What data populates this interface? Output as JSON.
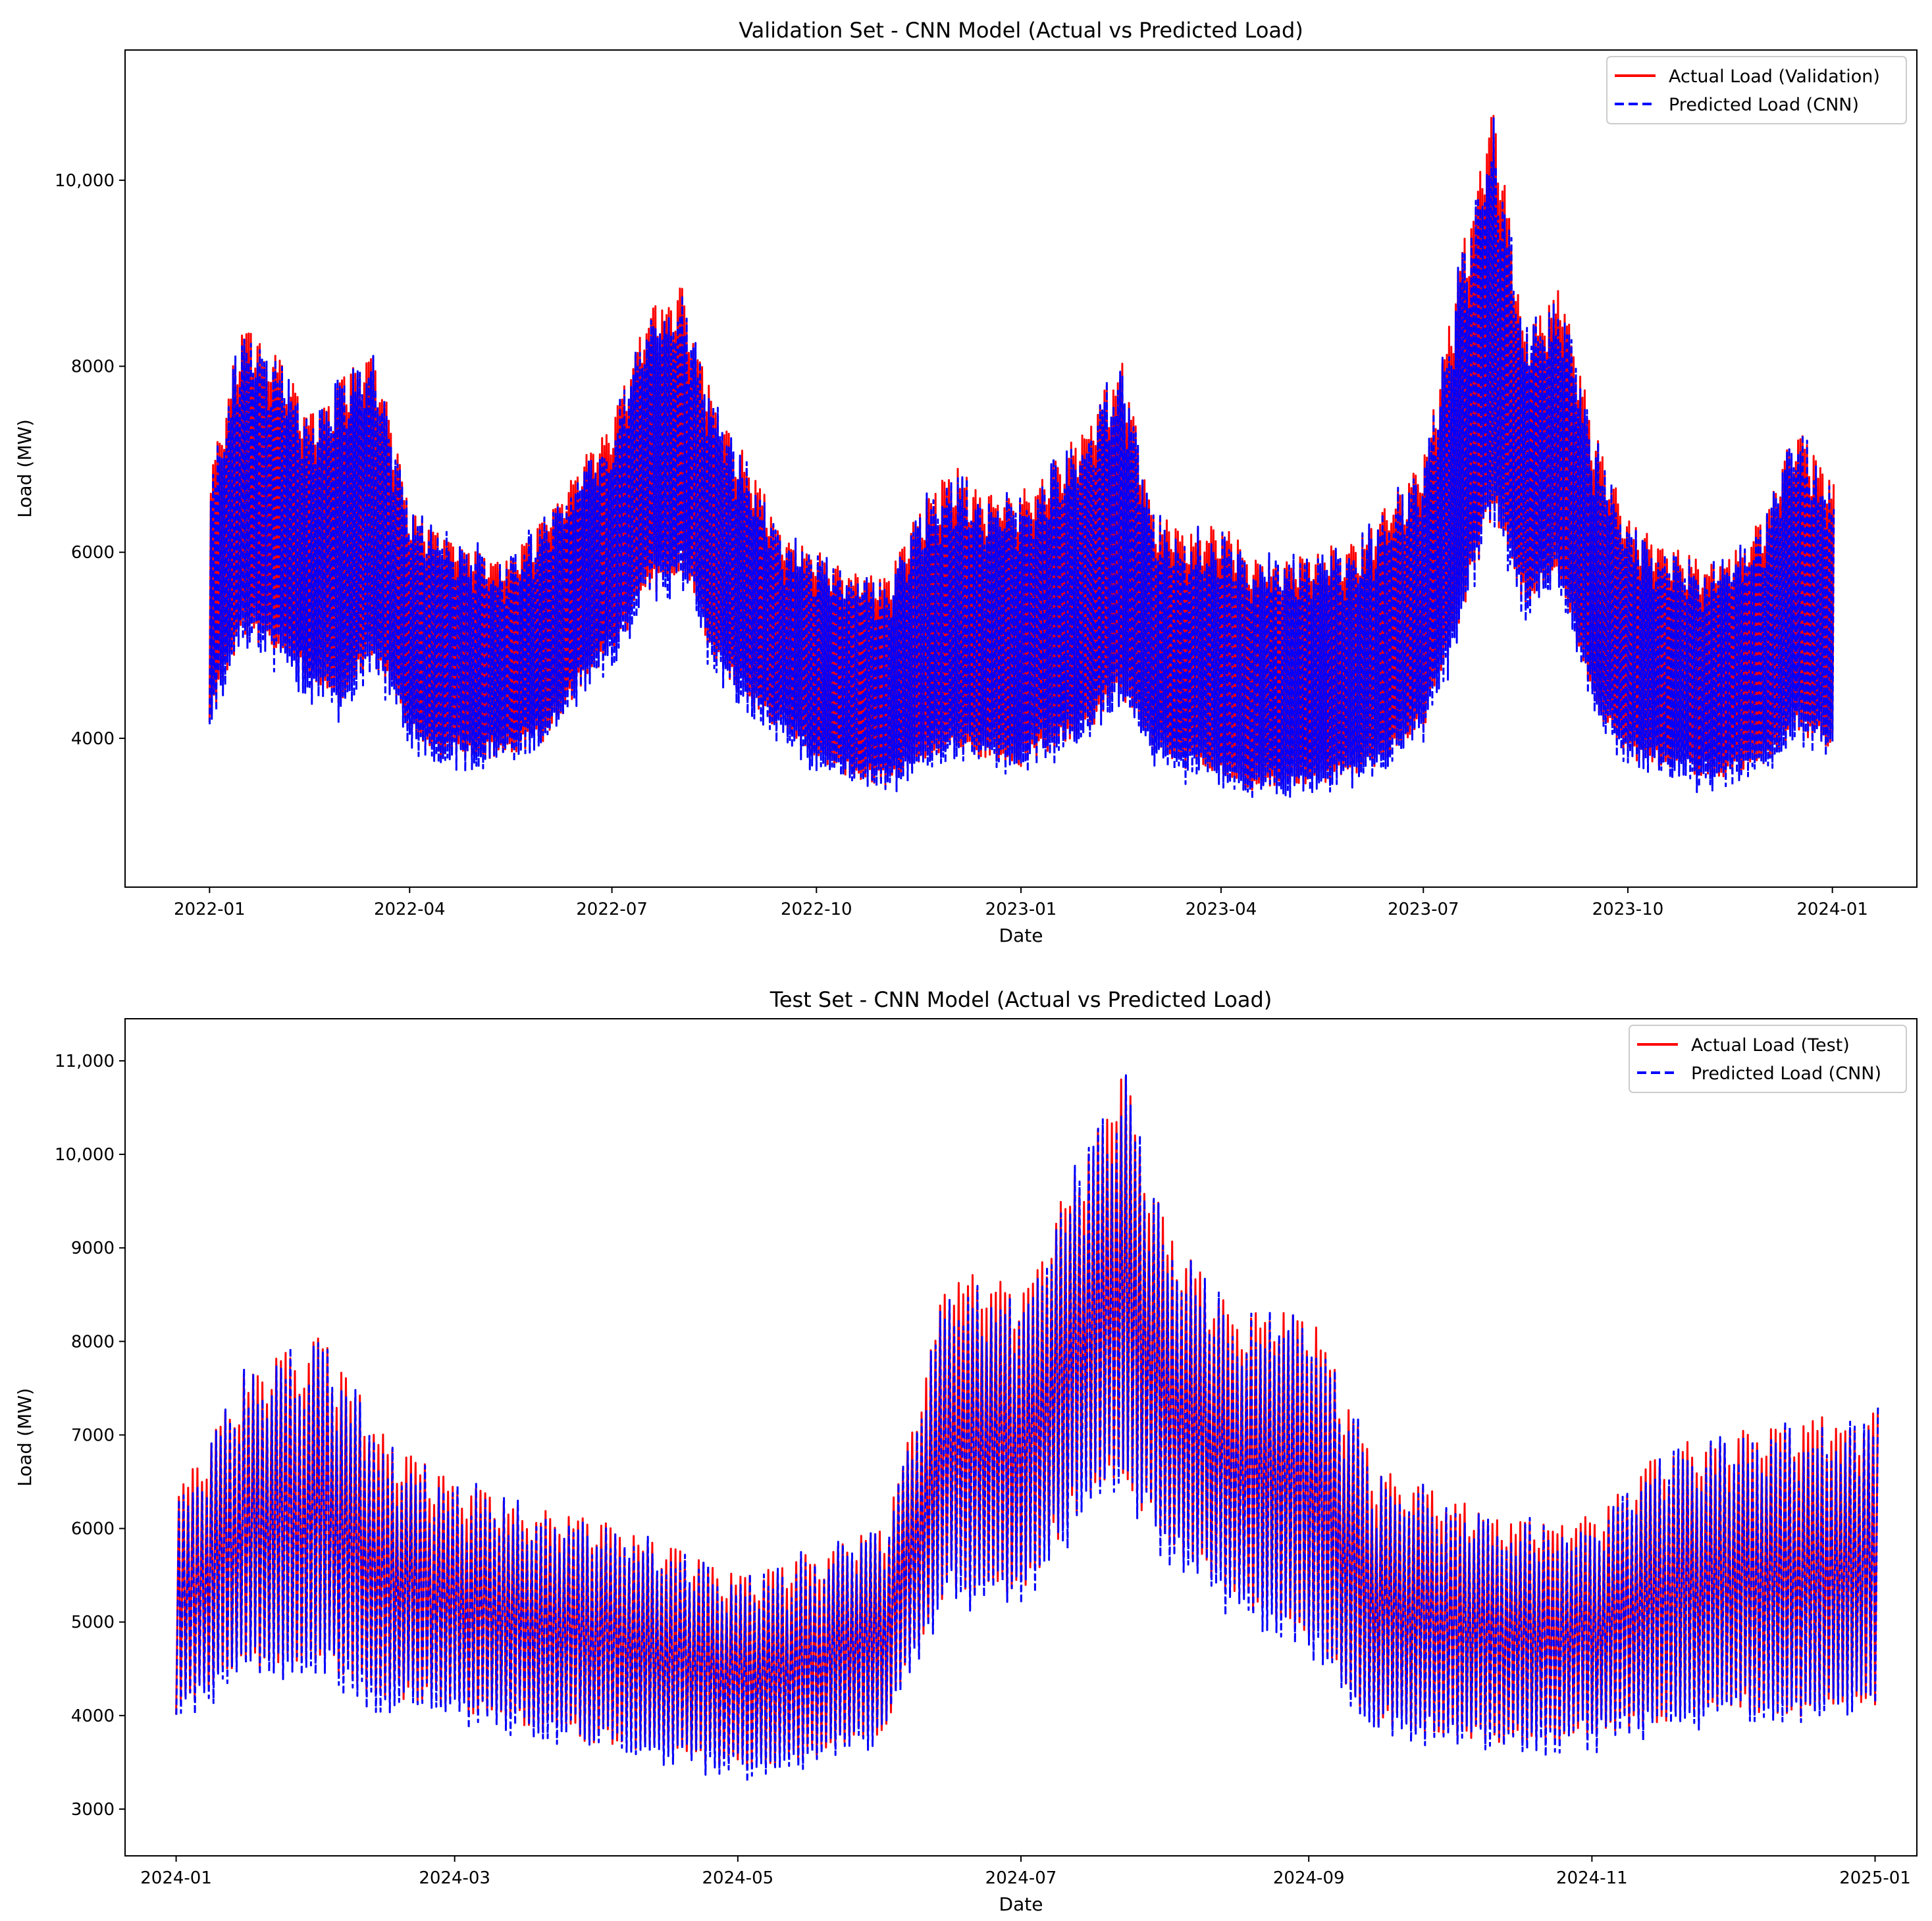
{
  "chart_data": [
    {
      "type": "line",
      "title": "Validation Set - CNN Model (Actual vs Predicted Load)",
      "xlabel": "Date",
      "ylabel": "Load (MW)",
      "x_range": [
        "2021-11-24",
        "2024-02-08"
      ],
      "ylim": [
        2400,
        11400
      ],
      "x_ticks": [
        {
          "date": "2022-01-01",
          "label": "2022-01"
        },
        {
          "date": "2022-04-01",
          "label": "2022-04"
        },
        {
          "date": "2022-07-01",
          "label": "2022-07"
        },
        {
          "date": "2022-10-01",
          "label": "2022-10"
        },
        {
          "date": "2023-01-01",
          "label": "2023-01"
        },
        {
          "date": "2023-04-01",
          "label": "2023-04"
        },
        {
          "date": "2023-07-01",
          "label": "2023-07"
        },
        {
          "date": "2023-10-01",
          "label": "2023-10"
        },
        {
          "date": "2024-01-01",
          "label": "2024-01"
        }
      ],
      "y_ticks": [
        {
          "value": 4000,
          "label": "4000"
        },
        {
          "value": 6000,
          "label": "6000"
        },
        {
          "value": 8000,
          "label": "8000"
        },
        {
          "value": 10000,
          "label": "10,000"
        }
      ],
      "legend_position": "top-right",
      "legend": [
        "Actual Load (Validation)",
        "Predicted Load (CNN)"
      ],
      "series": [
        {
          "name": "Actual Load (Validation)",
          "color": "#ff0000",
          "style": "solid"
        },
        {
          "name": "Predicted Load (CNN)",
          "color": "#0000ff",
          "style": "dashed"
        }
      ],
      "envelope": {
        "description": "approximate daily max/min of hourly load (monthly-resolution key points)",
        "dates": [
          "2022-01-01",
          "2022-01-15",
          "2022-02-01",
          "2022-02-15",
          "2022-03-01",
          "2022-03-15",
          "2022-04-01",
          "2022-04-15",
          "2022-05-01",
          "2022-05-15",
          "2022-06-01",
          "2022-06-15",
          "2022-07-01",
          "2022-07-15",
          "2022-08-01",
          "2022-08-15",
          "2022-09-01",
          "2022-09-15",
          "2022-10-01",
          "2022-10-15",
          "2022-11-01",
          "2022-11-15",
          "2022-12-01",
          "2022-12-15",
          "2023-01-01",
          "2023-01-15",
          "2023-02-01",
          "2023-02-15",
          "2023-03-01",
          "2023-03-15",
          "2023-04-01",
          "2023-04-15",
          "2023-05-01",
          "2023-05-15",
          "2023-06-01",
          "2023-06-15",
          "2023-07-01",
          "2023-07-15",
          "2023-08-01",
          "2023-08-15",
          "2023-09-01",
          "2023-09-15",
          "2023-10-01",
          "2023-10-15",
          "2023-11-01",
          "2023-11-15",
          "2023-12-01",
          "2023-12-15",
          "2024-01-01"
        ],
        "max": [
          6700,
          8300,
          7900,
          7400,
          7700,
          8100,
          6300,
          6100,
          5900,
          5800,
          6300,
          6800,
          7300,
          8400,
          8700,
          7500,
          6800,
          6100,
          5900,
          5700,
          5600,
          6300,
          6800,
          6500,
          6500,
          6800,
          7300,
          7900,
          6300,
          6100,
          6200,
          5800,
          5800,
          5900,
          6000,
          6400,
          6900,
          8700,
          10700,
          8200,
          8700,
          7200,
          6200,
          6000,
          5800,
          5800,
          6300,
          7200,
          6600
        ],
        "min": [
          4300,
          5200,
          5100,
          4700,
          4500,
          5000,
          4200,
          3900,
          3900,
          3900,
          4100,
          4600,
          5000,
          5600,
          6000,
          5000,
          4500,
          4200,
          3900,
          3700,
          3600,
          3800,
          4000,
          3900,
          3800,
          4000,
          4200,
          4600,
          4000,
          3800,
          3700,
          3500,
          3600,
          3600,
          3700,
          3900,
          4200,
          5200,
          6600,
          5600,
          5800,
          4500,
          3900,
          3800,
          3700,
          3700,
          3800,
          4200,
          4000
        ]
      }
    },
    {
      "type": "line",
      "title": "Test Set - CNN Model (Actual vs Predicted Load)",
      "xlabel": "Date",
      "ylabel": "Load (MW)",
      "x_range": [
        "2023-12-21",
        "2025-01-10"
      ],
      "ylim": [
        2500,
        11450
      ],
      "x_ticks": [
        {
          "date": "2024-01-01",
          "label": "2024-01"
        },
        {
          "date": "2024-03-01",
          "label": "2024-03"
        },
        {
          "date": "2024-05-01",
          "label": "2024-05"
        },
        {
          "date": "2024-07-01",
          "label": "2024-07"
        },
        {
          "date": "2024-09-01",
          "label": "2024-09"
        },
        {
          "date": "2024-11-01",
          "label": "2024-11"
        },
        {
          "date": "2025-01-01",
          "label": "2025-01"
        }
      ],
      "y_ticks": [
        {
          "value": 3000,
          "label": "3000"
        },
        {
          "value": 4000,
          "label": "4000"
        },
        {
          "value": 5000,
          "label": "5000"
        },
        {
          "value": 6000,
          "label": "6000"
        },
        {
          "value": 7000,
          "label": "7000"
        },
        {
          "value": 8000,
          "label": "8000"
        },
        {
          "value": 9000,
          "label": "9000"
        },
        {
          "value": 10000,
          "label": "10,000"
        },
        {
          "value": 11000,
          "label": "11,000"
        }
      ],
      "legend_position": "top-right",
      "legend": [
        "Actual Load (Test)",
        "Predicted Load (CNN)"
      ],
      "series": [
        {
          "name": "Actual Load (Test)",
          "color": "#ff0000",
          "style": "solid"
        },
        {
          "name": "Predicted Load (CNN)",
          "color": "#0000ff",
          "style": "dashed"
        }
      ],
      "envelope": {
        "description": "approximate daily max/min of hourly load (semi-monthly key points)",
        "dates": [
          "2024-01-01",
          "2024-01-15",
          "2024-02-01",
          "2024-02-15",
          "2024-03-01",
          "2024-03-15",
          "2024-04-01",
          "2024-04-15",
          "2024-05-01",
          "2024-05-15",
          "2024-06-01",
          "2024-06-15",
          "2024-07-01",
          "2024-07-15",
          "2024-07-22",
          "2024-08-01",
          "2024-08-15",
          "2024-09-01",
          "2024-09-15",
          "2024-10-01",
          "2024-10-15",
          "2024-11-01",
          "2024-11-15",
          "2024-12-01",
          "2024-12-15",
          "2025-01-01"
        ],
        "max": [
          6300,
          7500,
          7900,
          6800,
          6400,
          6100,
          6000,
          5700,
          5400,
          5600,
          5900,
          8600,
          8400,
          10000,
          10800,
          9000,
          8200,
          8100,
          6500,
          6200,
          6000,
          6000,
          6700,
          6900,
          7000,
          7200
        ],
        "min": [
          4100,
          4600,
          4700,
          4300,
          4200,
          4000,
          3800,
          3700,
          3500,
          3600,
          3900,
          5500,
          5400,
          6500,
          6700,
          6000,
          5400,
          5000,
          4000,
          3900,
          3800,
          3900,
          4000,
          4200,
          4100,
          4200
        ]
      }
    }
  ]
}
